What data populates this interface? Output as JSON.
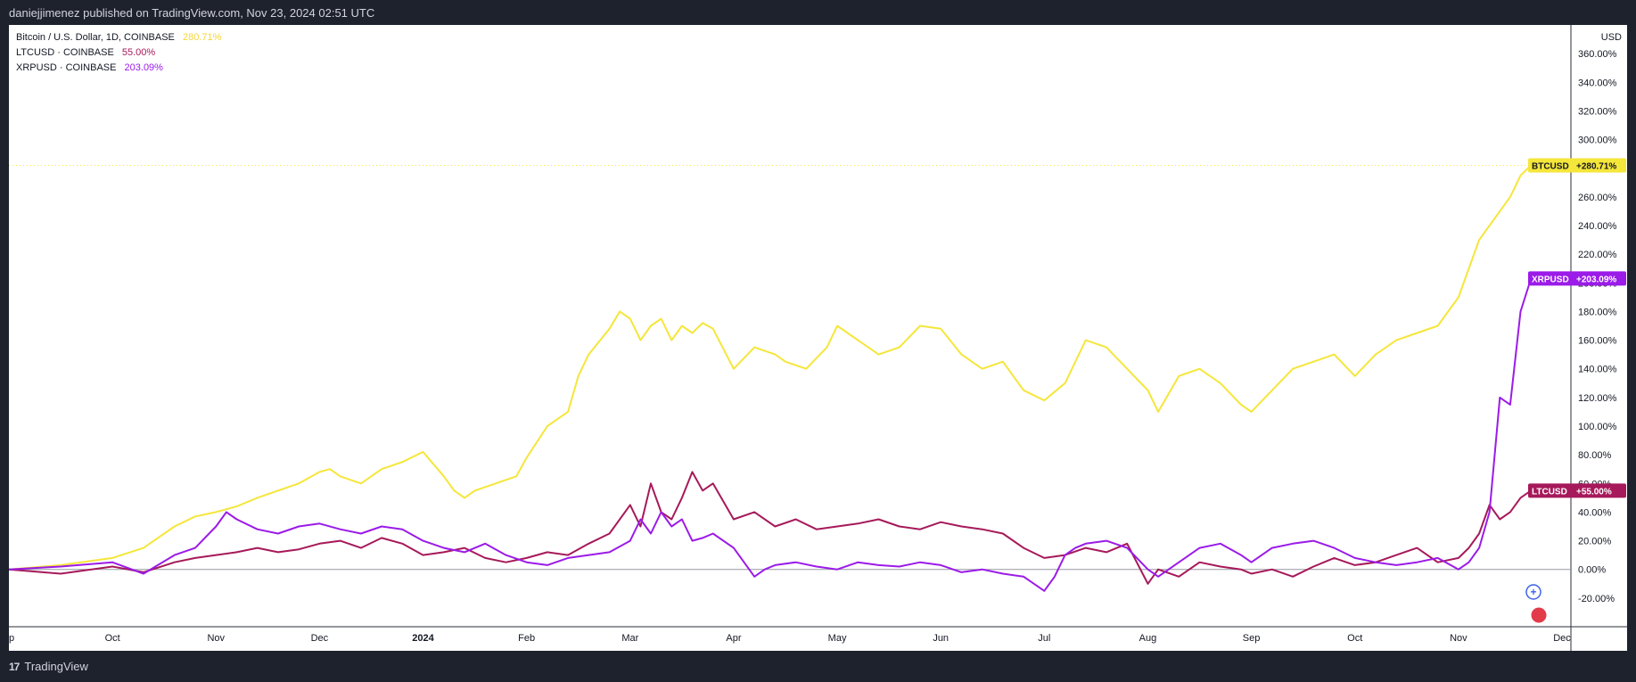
{
  "header": {
    "published": "daniejjimenez published on TradingView.com, Nov 23, 2024 02:51 UTC"
  },
  "footer": {
    "brand": "TradingView",
    "logo_glyph": "17"
  },
  "colors": {
    "btc": "#f5e63a",
    "ltc": "#a6195a",
    "xrp": "#9b1be8",
    "zero": "#9598a1",
    "btc_label": "#f5e63a"
  },
  "chart_data": {
    "type": "line",
    "title": "Bitcoin / U.S. Dollar, 1D, COINBASE",
    "currency": "USD",
    "legend": [
      {
        "name": "Bitcoin / U.S. Dollar, 1D, COINBASE",
        "value": "280.71%"
      },
      {
        "name": "LTCUSD · COINBASE",
        "value": "55.00%"
      },
      {
        "name": "XRPUSD · COINBASE",
        "value": "203.09%"
      }
    ],
    "price_labels": [
      {
        "symbol": "BTCUSD",
        "value": "+280.71%"
      },
      {
        "symbol": "XRPUSD",
        "value": "+203.09%"
      },
      {
        "symbol": "LTCUSD",
        "value": "+55.00%"
      }
    ],
    "ylim": [
      -40,
      380
    ],
    "y_ticks": [
      -20,
      0,
      20,
      40,
      60,
      80,
      100,
      120,
      140,
      160,
      180,
      200,
      220,
      240,
      260,
      280,
      300,
      320,
      340,
      360
    ],
    "y_tick_labels": [
      "-20.00%",
      "0.00%",
      "20.00%",
      "40.00%",
      "60.00%",
      "80.00%",
      "100.00%",
      "120.00%",
      "140.00%",
      "160.00%",
      "180.00%",
      "200.00%",
      "220.00%",
      "240.00%",
      "260.00%",
      "280.00%",
      "300.00%",
      "320.00%",
      "340.00%",
      "360.00%"
    ],
    "x_ticks": [
      "ep",
      "Oct",
      "Nov",
      "Dec",
      "2024",
      "Feb",
      "Mar",
      "Apr",
      "May",
      "Jun",
      "Jul",
      "Aug",
      "Sep",
      "Oct",
      "Nov",
      "Dec"
    ],
    "xlim": [
      0,
      15
    ],
    "x_tick_pos": [
      0,
      1,
      2,
      3,
      4,
      5,
      6,
      7,
      8,
      9,
      10,
      11,
      12,
      13,
      14,
      15
    ],
    "series": [
      {
        "name": "BTCUSD",
        "x": [
          0,
          0.5,
          1,
          1.3,
          1.6,
          1.8,
          2,
          2.2,
          2.4,
          2.6,
          2.8,
          3,
          3.1,
          3.2,
          3.4,
          3.6,
          3.8,
          4,
          4.2,
          4.3,
          4.4,
          4.5,
          4.7,
          4.9,
          5,
          5.2,
          5.4,
          5.5,
          5.6,
          5.8,
          5.9,
          6,
          6.1,
          6.2,
          6.3,
          6.4,
          6.5,
          6.6,
          6.7,
          6.8,
          7,
          7.2,
          7.4,
          7.5,
          7.7,
          7.9,
          8,
          8.2,
          8.4,
          8.6,
          8.8,
          9,
          9.2,
          9.4,
          9.6,
          9.8,
          10,
          10.2,
          10.4,
          10.6,
          10.8,
          11,
          11.1,
          11.3,
          11.5,
          11.7,
          11.9,
          12,
          12.2,
          12.4,
          12.6,
          12.8,
          13,
          13.2,
          13.4,
          13.6,
          13.8,
          14,
          14.1,
          14.2,
          14.3,
          14.4,
          14.5,
          14.6,
          14.7
        ],
        "values": [
          0,
          3,
          8,
          15,
          30,
          37,
          40,
          44,
          50,
          55,
          60,
          68,
          70,
          65,
          60,
          70,
          75,
          82,
          65,
          55,
          50,
          55,
          60,
          65,
          78,
          100,
          110,
          135,
          150,
          168,
          180,
          175,
          160,
          170,
          175,
          160,
          170,
          165,
          172,
          168,
          140,
          155,
          150,
          145,
          140,
          155,
          170,
          160,
          150,
          155,
          170,
          168,
          150,
          140,
          145,
          125,
          118,
          130,
          160,
          155,
          140,
          125,
          110,
          135,
          140,
          130,
          115,
          110,
          125,
          140,
          145,
          150,
          135,
          150,
          160,
          165,
          170,
          190,
          210,
          230,
          240,
          250,
          260,
          275,
          282
        ]
      },
      {
        "name": "LTCUSD",
        "x": [
          0,
          0.5,
          1,
          1.3,
          1.6,
          1.8,
          2,
          2.2,
          2.4,
          2.6,
          2.8,
          3,
          3.2,
          3.4,
          3.6,
          3.8,
          4,
          4.2,
          4.4,
          4.6,
          4.8,
          5,
          5.2,
          5.4,
          5.6,
          5.8,
          6,
          6.1,
          6.2,
          6.3,
          6.4,
          6.5,
          6.6,
          6.7,
          6.8,
          7,
          7.2,
          7.4,
          7.6,
          7.8,
          8,
          8.2,
          8.4,
          8.6,
          8.8,
          9,
          9.2,
          9.4,
          9.6,
          9.8,
          10,
          10.2,
          10.4,
          10.6,
          10.8,
          11,
          11.1,
          11.3,
          11.5,
          11.7,
          11.9,
          12,
          12.2,
          12.4,
          12.6,
          12.8,
          13,
          13.2,
          13.4,
          13.6,
          13.8,
          14,
          14.1,
          14.2,
          14.3,
          14.4,
          14.5,
          14.6,
          14.7
        ],
        "values": [
          0,
          -3,
          2,
          -2,
          5,
          8,
          10,
          12,
          15,
          12,
          14,
          18,
          20,
          15,
          22,
          18,
          10,
          12,
          15,
          8,
          5,
          8,
          12,
          10,
          18,
          25,
          45,
          30,
          60,
          40,
          35,
          50,
          68,
          55,
          60,
          35,
          40,
          30,
          35,
          28,
          30,
          32,
          35,
          30,
          28,
          33,
          30,
          28,
          25,
          15,
          8,
          10,
          15,
          12,
          18,
          -10,
          0,
          -5,
          5,
          2,
          0,
          -3,
          0,
          -5,
          2,
          8,
          3,
          5,
          10,
          15,
          5,
          8,
          15,
          25,
          45,
          35,
          40,
          50,
          55
        ]
      },
      {
        "name": "XRPUSD",
        "x": [
          0,
          0.5,
          1,
          1.3,
          1.6,
          1.8,
          2,
          2.1,
          2.2,
          2.4,
          2.6,
          2.8,
          3,
          3.2,
          3.4,
          3.6,
          3.8,
          4,
          4.2,
          4.4,
          4.6,
          4.8,
          5,
          5.2,
          5.4,
          5.6,
          5.8,
          6,
          6.1,
          6.2,
          6.3,
          6.4,
          6.5,
          6.6,
          6.7,
          6.8,
          7,
          7.2,
          7.3,
          7.4,
          7.6,
          7.8,
          8,
          8.2,
          8.4,
          8.6,
          8.8,
          9,
          9.2,
          9.4,
          9.6,
          9.8,
          10,
          10.1,
          10.2,
          10.3,
          10.4,
          10.6,
          10.8,
          11,
          11.1,
          11.3,
          11.5,
          11.7,
          11.9,
          12,
          12.2,
          12.4,
          12.6,
          12.8,
          13,
          13.2,
          13.4,
          13.6,
          13.8,
          14,
          14.1,
          14.2,
          14.3,
          14.4,
          14.5,
          14.6,
          14.7
        ],
        "values": [
          0,
          2,
          5,
          -3,
          10,
          15,
          30,
          40,
          35,
          28,
          25,
          30,
          32,
          28,
          25,
          30,
          28,
          20,
          15,
          12,
          18,
          10,
          5,
          3,
          8,
          10,
          12,
          20,
          35,
          25,
          40,
          30,
          35,
          20,
          22,
          25,
          15,
          -5,
          0,
          3,
          5,
          2,
          0,
          5,
          3,
          2,
          5,
          3,
          -2,
          0,
          -3,
          -5,
          -15,
          -5,
          10,
          15,
          18,
          20,
          15,
          0,
          -5,
          5,
          15,
          18,
          10,
          5,
          15,
          18,
          20,
          15,
          8,
          5,
          3,
          5,
          8,
          0,
          5,
          15,
          40,
          120,
          115,
          180,
          203
        ]
      }
    ]
  }
}
